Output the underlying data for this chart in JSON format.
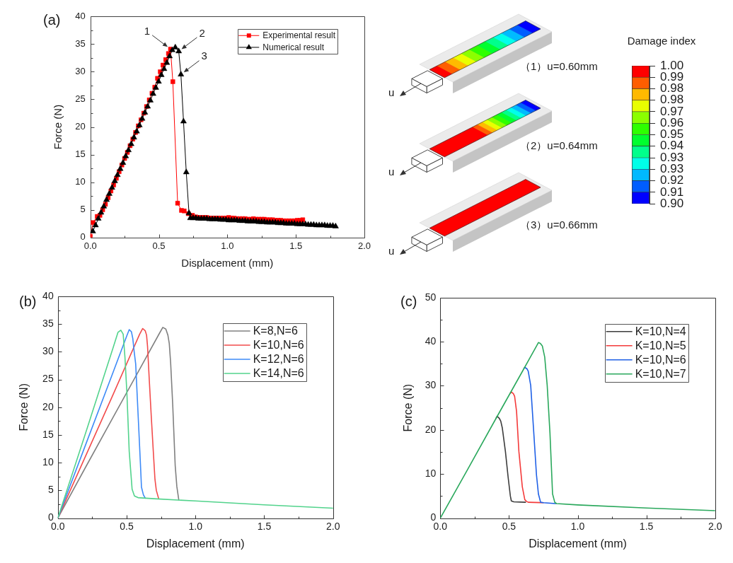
{
  "chart_data": [
    {
      "type": "line",
      "title": "(a)",
      "xlabel": "Displacement (mm)",
      "ylabel": "Force (N)",
      "xlim": [
        0,
        2
      ],
      "xticks": [
        {
          "value": 0,
          "label": "0.0"
        },
        {
          "value": 0.25,
          "label": null
        },
        {
          "value": 0.5,
          "label": "0.5"
        },
        {
          "value": 0.75,
          "label": null
        },
        {
          "value": 1,
          "label": "1.0"
        },
        {
          "value": 1.25,
          "label": null
        },
        {
          "value": 1.5,
          "label": "1.5"
        },
        {
          "value": 1.75,
          "label": null
        },
        {
          "value": 2,
          "label": "2.0"
        }
      ],
      "ylim": [
        0,
        40
      ],
      "yticks": [
        0,
        {
          "value": 2.5,
          "label": null
        },
        5,
        {
          "value": 7.5,
          "label": null
        },
        10,
        {
          "value": 12.5,
          "label": null
        },
        15,
        {
          "value": 17.5,
          "label": null
        },
        20,
        {
          "value": 22.5,
          "label": null
        },
        25,
        {
          "value": 27.5,
          "label": null
        },
        30,
        {
          "value": 32.5,
          "label": null
        },
        35,
        {
          "value": 37.5,
          "label": null
        },
        40
      ],
      "legend": "top right",
      "series": [
        {
          "name": "Experimental result",
          "color": "#ff0000",
          "marker": "square",
          "x": [
            0,
            0.02,
            0.05,
            0.07,
            0.09,
            0.11,
            0.13,
            0.15,
            0.17,
            0.19,
            0.21,
            0.23,
            0.25,
            0.27,
            0.29,
            0.31,
            0.33,
            0.35,
            0.37,
            0.39,
            0.41,
            0.43,
            0.45,
            0.47,
            0.49,
            0.51,
            0.53,
            0.55,
            0.57,
            0.585,
            0.602,
            0.637,
            0.665,
            0.685,
            0.715,
            0.745,
            0.77,
            0.79,
            0.81,
            0.83,
            0.85,
            0.87,
            0.89,
            0.91,
            0.93,
            0.95,
            0.97,
            0.99,
            1.01,
            1.03,
            1.05,
            1.07,
            1.09,
            1.11,
            1.13,
            1.15,
            1.17,
            1.19,
            1.21,
            1.23,
            1.25,
            1.27,
            1.29,
            1.31,
            1.33,
            1.35,
            1.37,
            1.39,
            1.41,
            1.43,
            1.45,
            1.47,
            1.49,
            1.51,
            1.53,
            1.55
          ],
          "values": [
            0.2,
            2.7,
            3.8,
            4.0,
            5.0,
            6.0,
            7.2,
            8.4,
            9.5,
            10.7,
            11.9,
            13.1,
            14.3,
            15.4,
            16.6,
            17.8,
            19.0,
            20.2,
            21.3,
            22.5,
            23.7,
            24.9,
            26.1,
            27.2,
            28.8,
            30.0,
            31.2,
            32.2,
            33.3,
            34.1,
            28.2,
            6.2,
            4.9,
            4.8,
            4.3,
            4.0,
            3.7,
            3.6,
            3.6,
            3.6,
            3.6,
            3.5,
            3.5,
            3.5,
            3.5,
            3.5,
            3.5,
            3.5,
            3.6,
            3.5,
            3.5,
            3.4,
            3.4,
            3.4,
            3.4,
            3.3,
            3.3,
            3.4,
            3.3,
            3.3,
            3.3,
            3.3,
            3.2,
            3.2,
            3.2,
            3.1,
            3.1,
            3.1,
            3.0,
            3.0,
            3.0,
            3.0,
            3.0,
            3.1,
            3.1,
            3.2
          ]
        },
        {
          "name": "Numerical result",
          "color": "#000000",
          "marker": "triangle",
          "x": [
            0.018,
            0.038,
            0.058,
            0.078,
            0.098,
            0.118,
            0.138,
            0.158,
            0.178,
            0.198,
            0.218,
            0.238,
            0.258,
            0.278,
            0.298,
            0.318,
            0.338,
            0.358,
            0.378,
            0.398,
            0.418,
            0.438,
            0.458,
            0.478,
            0.498,
            0.518,
            0.538,
            0.558,
            0.578,
            0.598,
            0.62,
            0.645,
            0.661,
            0.68,
            0.7,
            0.72,
            0.73,
            0.75,
            0.77,
            0.79,
            0.81,
            0.83,
            0.85,
            0.87,
            0.89,
            0.91,
            0.93,
            0.95,
            0.97,
            0.99,
            1.01,
            1.03,
            1.05,
            1.07,
            1.09,
            1.11,
            1.13,
            1.15,
            1.17,
            1.19,
            1.21,
            1.23,
            1.25,
            1.27,
            1.29,
            1.31,
            1.33,
            1.35,
            1.37,
            1.39,
            1.41,
            1.43,
            1.45,
            1.47,
            1.49,
            1.51,
            1.53,
            1.55,
            1.57,
            1.59,
            1.61,
            1.63,
            1.65,
            1.67,
            1.69,
            1.71,
            1.73,
            1.75,
            1.77,
            1.79
          ],
          "values": [
            1.1,
            2.2,
            3.4,
            4.5,
            5.6,
            6.8,
            7.9,
            9.0,
            10.2,
            11.3,
            12.4,
            13.5,
            14.7,
            15.8,
            16.9,
            18.1,
            19.2,
            20.3,
            21.5,
            22.6,
            23.7,
            24.8,
            26.0,
            27.1,
            28.2,
            29.4,
            30.5,
            31.6,
            32.8,
            33.9,
            34.4,
            33.7,
            29.5,
            21.0,
            11.8,
            4.4,
            3.5,
            3.5,
            3.5,
            3.4,
            3.4,
            3.4,
            3.4,
            3.3,
            3.3,
            3.3,
            3.3,
            3.2,
            3.2,
            3.2,
            3.1,
            3.1,
            3.1,
            3.1,
            3.0,
            3.0,
            3.0,
            2.9,
            2.9,
            2.9,
            2.9,
            2.8,
            2.8,
            2.8,
            2.7,
            2.7,
            2.7,
            2.7,
            2.6,
            2.6,
            2.6,
            2.5,
            2.5,
            2.5,
            2.5,
            2.4,
            2.4,
            2.4,
            2.4,
            2.3,
            2.3,
            2.3,
            2.2,
            2.2,
            2.2,
            2.2,
            2.1,
            2.1,
            2.1,
            2.0
          ]
        }
      ],
      "annotations": [
        {
          "text": "1",
          "x": 0.585,
          "y": 34.1
        },
        {
          "text": "2",
          "x": 0.645,
          "y": 33.7
        },
        {
          "text": "3",
          "x": 0.661,
          "y": 29.5
        }
      ]
    },
    {
      "type": "other",
      "annotations": [
        "（1）u=0.60mm",
        "u",
        "（2）u=0.64mm",
        "u",
        "（3）u=0.66mm",
        "u"
      ]
    },
    {
      "type": "bar",
      "title": "Damage index",
      "categories": [
        null
      ],
      "ylim": [
        0.9,
        1.0
      ],
      "yticks": [
        {
          "value": 0.9,
          "label": "0.90"
        },
        {
          "value": 0.9083,
          "label": "0.91"
        },
        {
          "value": 0.9167,
          "label": "0.92"
        },
        {
          "value": 0.925,
          "label": "0.93"
        },
        {
          "value": 0.9333,
          "label": "0.93"
        },
        {
          "value": 0.9417,
          "label": "0.94"
        },
        {
          "value": 0.95,
          "label": "0.95"
        },
        {
          "value": 0.9583,
          "label": "0.96"
        },
        {
          "value": 0.9667,
          "label": "0.97"
        },
        {
          "value": 0.975,
          "label": "0.98"
        },
        {
          "value": 0.9833,
          "label": "0.98"
        },
        {
          "value": 0.9917,
          "label": "0.99"
        },
        {
          "value": 1.0,
          "label": "1.00"
        }
      ],
      "series": [
        {
          "color": "#0000ff",
          "base": [
            0.9
          ],
          "values": [
            0.0083
          ]
        },
        {
          "color": "#005dff",
          "base": [
            0.9083
          ],
          "values": [
            0.0084
          ]
        },
        {
          "color": "#00b9ff",
          "base": [
            0.9167
          ],
          "values": [
            0.0083
          ]
        },
        {
          "color": "#00ffe8",
          "base": [
            0.925
          ],
          "values": [
            0.0083
          ]
        },
        {
          "color": "#00ff8b",
          "base": [
            0.9333
          ],
          "values": [
            0.0084
          ]
        },
        {
          "color": "#00ff2e",
          "base": [
            0.9417
          ],
          "values": [
            0.0083
          ]
        },
        {
          "color": "#2eff00",
          "base": [
            0.95
          ],
          "values": [
            0.0083
          ]
        },
        {
          "color": "#8bff00",
          "base": [
            0.9583
          ],
          "values": [
            0.0084
          ]
        },
        {
          "color": "#e8ff00",
          "base": [
            0.9667
          ],
          "values": [
            0.0083
          ]
        },
        {
          "color": "#ffb900",
          "base": [
            0.975
          ],
          "values": [
            0.0083
          ]
        },
        {
          "color": "#ff5d00",
          "base": [
            0.9833
          ],
          "values": [
            0.0084
          ]
        },
        {
          "color": "#ff0000",
          "base": [
            0.9917
          ],
          "values": [
            0.0083
          ]
        }
      ]
    },
    {
      "type": "line",
      "title": "(b)",
      "xlabel": "Displacement (mm)",
      "ylabel": "Force (N)",
      "xlim": [
        0,
        2
      ],
      "xticks": [
        {
          "value": 0,
          "label": "0.0"
        },
        {
          "value": 0.25,
          "label": null
        },
        {
          "value": 0.5,
          "label": "0.5"
        },
        {
          "value": 0.75,
          "label": null
        },
        {
          "value": 1,
          "label": "1.0"
        },
        {
          "value": 1.25,
          "label": null
        },
        {
          "value": 1.5,
          "label": "1.5"
        },
        {
          "value": 1.75,
          "label": null
        },
        {
          "value": 2,
          "label": "2.0"
        }
      ],
      "ylim": [
        0,
        40
      ],
      "yticks": [
        0,
        {
          "value": 2.5,
          "label": null
        },
        5,
        {
          "value": 7.5,
          "label": null
        },
        10,
        {
          "value": 12.5,
          "label": null
        },
        15,
        {
          "value": 17.5,
          "label": null
        },
        20,
        {
          "value": 22.5,
          "label": null
        },
        25,
        {
          "value": 27.5,
          "label": null
        },
        30,
        {
          "value": 32.5,
          "label": null
        },
        35,
        {
          "value": 37.5,
          "label": null
        },
        40
      ],
      "legend": "top right",
      "series": [
        {
          "name": "K=8,N=6",
          "color": "#808080",
          "x": [
            0,
            0.2,
            0.4,
            0.6,
            0.74,
            0.763,
            0.785,
            0.8,
            0.81,
            0.82,
            0.835,
            0.853,
            0.865,
            0.879
          ],
          "values": [
            0,
            9.1,
            18.1,
            27.1,
            33.4,
            34.4,
            34.1,
            33.0,
            31.5,
            28.0,
            20.5,
            9.5,
            5.7,
            3.3
          ]
        },
        {
          "name": "K=10,N=6",
          "color": "#f24b4b",
          "x": [
            0,
            0.2,
            0.4,
            0.595,
            0.617,
            0.635,
            0.645,
            0.652,
            0.665,
            0.68,
            0.694,
            0.706,
            0.716,
            0.732
          ],
          "values": [
            0,
            11.1,
            22.2,
            33.2,
            34.2,
            33.8,
            33.0,
            31.0,
            24.8,
            18.0,
            12.0,
            7.0,
            5.0,
            3.6
          ]
        },
        {
          "name": "K=12,N=6",
          "color": "#3d8af7",
          "x": [
            0,
            0.2,
            0.4,
            0.5,
            0.519,
            0.535,
            0.545,
            0.555,
            0.566,
            0.588,
            0.6,
            0.608,
            0.622,
            0.636
          ],
          "values": [
            0,
            13.1,
            26.2,
            32.8,
            34.0,
            33.6,
            32.4,
            30.0,
            27.8,
            16.3,
            10.0,
            5.6,
            4.2,
            3.6
          ]
        },
        {
          "name": "K=14,N=6",
          "color": "#52d38c",
          "x": [
            0,
            0.2,
            0.4,
            0.437,
            0.458,
            0.475,
            0.488,
            0.502,
            0.519,
            0.54,
            0.557,
            0.583,
            0.7,
            1.0,
            1.5,
            2.0
          ],
          "values": [
            0,
            15.2,
            30.6,
            33.5,
            33.9,
            33.2,
            29.0,
            22.6,
            12.0,
            5.2,
            4.0,
            3.7,
            3.5,
            3.1,
            2.4,
            1.8
          ]
        }
      ]
    },
    {
      "type": "line",
      "title": "(c)",
      "xlabel": "Displacement (mm)",
      "ylabel": "Force (N)",
      "xlim": [
        0,
        2
      ],
      "xticks": [
        {
          "value": 0,
          "label": "0.0"
        },
        {
          "value": 0.25,
          "label": null
        },
        {
          "value": 0.5,
          "label": "0.5"
        },
        {
          "value": 0.75,
          "label": null
        },
        {
          "value": 1,
          "label": "1.0"
        },
        {
          "value": 1.25,
          "label": null
        },
        {
          "value": 1.5,
          "label": "1.5"
        },
        {
          "value": 1.75,
          "label": null
        },
        {
          "value": 2,
          "label": "2.0"
        }
      ],
      "ylim": [
        0,
        50
      ],
      "yticks": [
        0,
        {
          "value": 5,
          "label": null
        },
        10,
        {
          "value": 15,
          "label": null
        },
        20,
        {
          "value": 25,
          "label": null
        },
        30,
        {
          "value": 35,
          "label": null
        },
        40,
        {
          "value": 45,
          "label": null
        },
        50
      ],
      "legend": "top right",
      "series": [
        {
          "name": "K=10,N=4",
          "color": "#3c3c3c",
          "x": [
            0.405,
            0.414,
            0.43,
            0.44,
            0.451,
            0.474,
            0.494,
            0.51,
            0.517,
            0.535,
            0.62
          ],
          "values": [
            22.6,
            23.1,
            22.6,
            22.0,
            20.5,
            15.1,
            9.2,
            5.0,
            3.9,
            3.7,
            3.6
          ]
        },
        {
          "name": "K=10,N=5",
          "color": "#f43a3a",
          "x": [
            0.51,
            0.517,
            0.532,
            0.541,
            0.555,
            0.572,
            0.597,
            0.615,
            0.627,
            0.64,
            0.75
          ],
          "values": [
            28.3,
            28.6,
            28.2,
            27.6,
            24.2,
            15.1,
            7.1,
            4.2,
            3.8,
            3.6,
            3.5
          ]
        },
        {
          "name": "K=10,N=6",
          "color": "#1f60e6",
          "x": [
            0.608,
            0.615,
            0.632,
            0.64,
            0.658,
            0.678,
            0.7,
            0.714,
            0.73,
            0.752,
            0.84
          ],
          "values": [
            33.9,
            34.2,
            33.8,
            33.3,
            30.1,
            20.5,
            9.8,
            5.5,
            3.6,
            3.5,
            3.3
          ]
        },
        {
          "name": "K=10,N=7",
          "color": "#2aa85c",
          "x": [
            0,
            0.2,
            0.4,
            0.6,
            0.7,
            0.714,
            0.728,
            0.743,
            0.76,
            0.778,
            0.798,
            0.817,
            0.833,
            0.846,
            1.0,
            1.5,
            2.0
          ],
          "values": [
            0,
            11.1,
            22.3,
            33.4,
            39.0,
            39.8,
            39.6,
            39.0,
            36.5,
            30.1,
            19.4,
            5.5,
            3.6,
            3.3,
            3.0,
            2.3,
            1.7
          ]
        }
      ]
    }
  ]
}
